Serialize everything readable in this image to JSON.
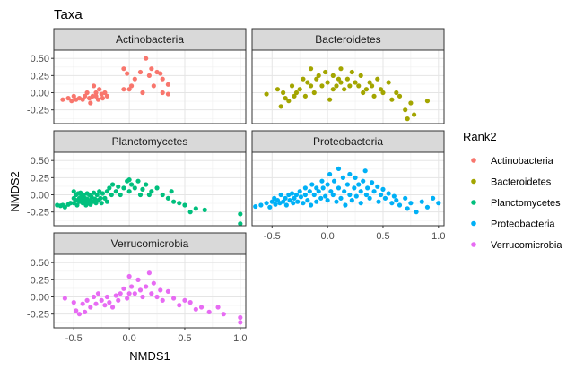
{
  "chart_data": {
    "type": "scatter",
    "title": "Taxa",
    "xlabel": "NMDS1",
    "ylabel": "NMDS2",
    "xlim": [
      -0.68,
      1.05
    ],
    "ylim": [
      -0.45,
      0.62
    ],
    "x_ticks": [
      -0.5,
      0.0,
      0.5,
      1.0
    ],
    "x_tick_labels": [
      "-0.5",
      "0.0",
      "0.5",
      "1.0"
    ],
    "y_ticks": [
      -0.25,
      0.0,
      0.25,
      0.5
    ],
    "y_tick_labels": [
      "-0.25",
      "0.00",
      "0.25",
      "0.50"
    ],
    "grid": true,
    "legend": {
      "title": "Rank2",
      "placement": "right",
      "entries": [
        "Actinobacteria",
        "Bacteroidetes",
        "Planctomycetes",
        "Proteobacteria",
        "Verrucomicrobia"
      ]
    },
    "colors": {
      "Actinobacteria": "#F8766D",
      "Bacteroidetes": "#A3A500",
      "Planctomycetes": "#00BF7D",
      "Proteobacteria": "#00B0F6",
      "Verrucomicrobia": "#E76BF3"
    },
    "panels": [
      {
        "name": "Actinobacteria",
        "points": [
          [
            -0.6,
            -0.1
          ],
          [
            -0.55,
            -0.08
          ],
          [
            -0.52,
            -0.12
          ],
          [
            -0.5,
            -0.05
          ],
          [
            -0.48,
            -0.1
          ],
          [
            -0.45,
            -0.08
          ],
          [
            -0.42,
            -0.1
          ],
          [
            -0.4,
            -0.05
          ],
          [
            -0.38,
            0.0
          ],
          [
            -0.36,
            -0.08
          ],
          [
            -0.35,
            -0.15
          ],
          [
            -0.33,
            -0.05
          ],
          [
            -0.32,
            0.1
          ],
          [
            -0.3,
            0.0
          ],
          [
            -0.3,
            -0.05
          ],
          [
            -0.28,
            -0.1
          ],
          [
            -0.27,
            0.05
          ],
          [
            -0.25,
            -0.02
          ],
          [
            -0.24,
            -0.08
          ],
          [
            -0.22,
            0.0
          ],
          [
            -0.2,
            -0.05
          ],
          [
            -0.05,
            0.05
          ],
          [
            0.0,
            0.05
          ],
          [
            0.02,
            0.1
          ],
          [
            -0.05,
            0.35
          ],
          [
            -0.02,
            0.28
          ],
          [
            0.05,
            0.2
          ],
          [
            0.1,
            0.3
          ],
          [
            0.12,
            0.0
          ],
          [
            0.15,
            0.5
          ],
          [
            0.18,
            0.25
          ],
          [
            0.2,
            0.35
          ],
          [
            0.22,
            0.1
          ],
          [
            0.25,
            0.3
          ],
          [
            0.28,
            0.28
          ],
          [
            0.3,
            0.2
          ],
          [
            0.3,
            0.0
          ],
          [
            0.35,
            0.12
          ],
          [
            0.35,
            -0.02
          ]
        ]
      },
      {
        "name": "Bacteroidetes",
        "points": [
          [
            -0.55,
            -0.02
          ],
          [
            -0.45,
            0.05
          ],
          [
            -0.42,
            -0.2
          ],
          [
            -0.4,
            0.0
          ],
          [
            -0.38,
            -0.08
          ],
          [
            -0.35,
            -0.12
          ],
          [
            -0.32,
            0.1
          ],
          [
            -0.3,
            -0.05
          ],
          [
            -0.28,
            0.0
          ],
          [
            -0.25,
            0.05
          ],
          [
            -0.22,
            0.2
          ],
          [
            -0.2,
            -0.05
          ],
          [
            -0.18,
            0.15
          ],
          [
            -0.15,
            0.35
          ],
          [
            -0.15,
            0.1
          ],
          [
            -0.12,
            0.0
          ],
          [
            -0.1,
            0.2
          ],
          [
            -0.08,
            0.25
          ],
          [
            -0.05,
            0.1
          ],
          [
            -0.02,
            0.3
          ],
          [
            0.0,
            0.15
          ],
          [
            0.02,
            -0.1
          ],
          [
            0.05,
            0.05
          ],
          [
            0.05,
            0.25
          ],
          [
            0.08,
            0.1
          ],
          [
            0.1,
            0.2
          ],
          [
            0.12,
            0.35
          ],
          [
            0.12,
            0.15
          ],
          [
            0.15,
            0.05
          ],
          [
            0.18,
            0.2
          ],
          [
            0.2,
            0.1
          ],
          [
            0.22,
            0.3
          ],
          [
            0.25,
            0.15
          ],
          [
            0.28,
            0.1
          ],
          [
            0.3,
            0.25
          ],
          [
            0.32,
            0.0
          ],
          [
            0.35,
            0.05
          ],
          [
            0.38,
            0.15
          ],
          [
            0.4,
            0.1
          ],
          [
            0.42,
            -0.05
          ],
          [
            0.45,
            0.2
          ],
          [
            0.48,
            0.05
          ],
          [
            0.5,
            0.0
          ],
          [
            0.55,
            0.15
          ],
          [
            0.58,
            -0.1
          ],
          [
            0.62,
            0.0
          ],
          [
            0.65,
            -0.05
          ],
          [
            0.7,
            -0.25
          ],
          [
            0.72,
            -0.38
          ],
          [
            0.75,
            -0.15
          ],
          [
            0.78,
            -0.32
          ],
          [
            0.9,
            -0.12
          ]
        ]
      },
      {
        "name": "Planctomycetes",
        "points": [
          [
            -0.65,
            -0.15
          ],
          [
            -0.62,
            -0.16
          ],
          [
            -0.6,
            -0.15
          ],
          [
            -0.58,
            -0.18
          ],
          [
            -0.55,
            -0.14
          ],
          [
            -0.53,
            -0.12
          ],
          [
            -0.5,
            0.05
          ],
          [
            -0.5,
            -0.05
          ],
          [
            -0.5,
            -0.12
          ],
          [
            -0.48,
            0.0
          ],
          [
            -0.48,
            -0.08
          ],
          [
            -0.47,
            -0.15
          ],
          [
            -0.46,
            0.02
          ],
          [
            -0.45,
            -0.05
          ],
          [
            -0.45,
            -0.1
          ],
          [
            -0.44,
            0.03
          ],
          [
            -0.43,
            -0.02
          ],
          [
            -0.42,
            -0.08
          ],
          [
            -0.42,
            -0.12
          ],
          [
            -0.41,
            0.0
          ],
          [
            -0.4,
            -0.05
          ],
          [
            -0.4,
            -0.1
          ],
          [
            -0.39,
            -0.15
          ],
          [
            -0.38,
            0.02
          ],
          [
            -0.38,
            -0.06
          ],
          [
            -0.37,
            -0.12
          ],
          [
            -0.36,
            0.0
          ],
          [
            -0.35,
            -0.08
          ],
          [
            -0.35,
            -0.14
          ],
          [
            -0.34,
            -0.03
          ],
          [
            -0.33,
            -0.1
          ],
          [
            -0.32,
            0.03
          ],
          [
            -0.31,
            -0.06
          ],
          [
            -0.3,
            -0.12
          ],
          [
            -0.29,
            0.0
          ],
          [
            -0.28,
            -0.08
          ],
          [
            -0.27,
            0.05
          ],
          [
            -0.26,
            -0.05
          ],
          [
            -0.25,
            -0.12
          ],
          [
            -0.24,
            0.02
          ],
          [
            -0.22,
            -0.05
          ],
          [
            -0.2,
            0.05
          ],
          [
            -0.2,
            -0.1
          ],
          [
            -0.18,
            0.1
          ],
          [
            -0.16,
            0.0
          ],
          [
            -0.15,
            0.15
          ],
          [
            -0.12,
            0.05
          ],
          [
            -0.1,
            0.12
          ],
          [
            -0.08,
            0.0
          ],
          [
            -0.05,
            0.1
          ],
          [
            -0.02,
            0.2
          ],
          [
            0.0,
            0.05
          ],
          [
            0.0,
            0.22
          ],
          [
            0.02,
            0.15
          ],
          [
            0.05,
            0.1
          ],
          [
            0.08,
            0.2
          ],
          [
            0.1,
            0.0
          ],
          [
            0.12,
            0.08
          ],
          [
            0.15,
            0.15
          ],
          [
            0.18,
            0.0
          ],
          [
            0.2,
            0.05
          ],
          [
            0.25,
            0.1
          ],
          [
            0.3,
            0.0
          ],
          [
            0.35,
            -0.05
          ],
          [
            0.38,
            0.05
          ],
          [
            0.4,
            -0.1
          ],
          [
            0.45,
            -0.12
          ],
          [
            0.5,
            -0.15
          ],
          [
            0.55,
            -0.25
          ],
          [
            0.6,
            -0.2
          ],
          [
            0.68,
            -0.22
          ],
          [
            1.0,
            -0.28
          ],
          [
            1.0,
            -0.42
          ]
        ]
      },
      {
        "name": "Proteobacteria",
        "points": [
          [
            -0.65,
            -0.17
          ],
          [
            -0.6,
            -0.15
          ],
          [
            -0.55,
            -0.12
          ],
          [
            -0.52,
            -0.18
          ],
          [
            -0.5,
            -0.1
          ],
          [
            -0.48,
            -0.05
          ],
          [
            -0.47,
            -0.14
          ],
          [
            -0.45,
            -0.08
          ],
          [
            -0.43,
            -0.12
          ],
          [
            -0.42,
            0.0
          ],
          [
            -0.4,
            -0.1
          ],
          [
            -0.38,
            -0.05
          ],
          [
            -0.37,
            -0.15
          ],
          [
            -0.35,
            0.0
          ],
          [
            -0.34,
            -0.08
          ],
          [
            -0.32,
            0.02
          ],
          [
            -0.31,
            -0.12
          ],
          [
            -0.3,
            -0.05
          ],
          [
            -0.28,
            0.0
          ],
          [
            -0.27,
            -0.1
          ],
          [
            -0.25,
            0.05
          ],
          [
            -0.24,
            -0.03
          ],
          [
            -0.22,
            -0.12
          ],
          [
            -0.2,
            0.1
          ],
          [
            -0.2,
            0.0
          ],
          [
            -0.18,
            -0.08
          ],
          [
            -0.16,
            0.05
          ],
          [
            -0.15,
            -0.15
          ],
          [
            -0.14,
            0.15
          ],
          [
            -0.12,
            0.0
          ],
          [
            -0.1,
            0.1
          ],
          [
            -0.1,
            -0.1
          ],
          [
            -0.08,
            0.05
          ],
          [
            -0.06,
            -0.05
          ],
          [
            -0.05,
            0.2
          ],
          [
            -0.04,
            0.1
          ],
          [
            -0.02,
            -0.02
          ],
          [
            0.0,
            0.15
          ],
          [
            0.0,
            -0.08
          ],
          [
            0.02,
            0.3
          ],
          [
            0.03,
            0.05
          ],
          [
            0.05,
            0.0
          ],
          [
            0.06,
            0.2
          ],
          [
            0.08,
            -0.1
          ],
          [
            0.1,
            0.38
          ],
          [
            0.1,
            0.1
          ],
          [
            0.12,
            -0.05
          ],
          [
            0.14,
            0.25
          ],
          [
            0.15,
            0.05
          ],
          [
            0.16,
            -0.15
          ],
          [
            0.18,
            0.15
          ],
          [
            0.2,
            0.3
          ],
          [
            0.2,
            0.0
          ],
          [
            0.22,
            -0.08
          ],
          [
            0.24,
            0.1
          ],
          [
            0.25,
            0.25
          ],
          [
            0.26,
            -0.02
          ],
          [
            0.28,
            0.15
          ],
          [
            0.3,
            0.05
          ],
          [
            0.3,
            -0.12
          ],
          [
            0.32,
            0.2
          ],
          [
            0.34,
            0.35
          ],
          [
            0.35,
            0.0
          ],
          [
            0.36,
            0.1
          ],
          [
            0.38,
            -0.05
          ],
          [
            0.4,
            0.18
          ],
          [
            0.42,
            0.05
          ],
          [
            0.45,
            0.12
          ],
          [
            0.46,
            -0.1
          ],
          [
            0.48,
            0.0
          ],
          [
            0.5,
            0.08
          ],
          [
            0.52,
            -0.05
          ],
          [
            0.55,
            0.02
          ],
          [
            0.58,
            -0.12
          ],
          [
            0.6,
            -0.02
          ],
          [
            0.62,
            -0.08
          ],
          [
            0.65,
            -0.15
          ],
          [
            0.7,
            -0.05
          ],
          [
            0.72,
            -0.2
          ],
          [
            0.75,
            -0.12
          ],
          [
            0.8,
            -0.25
          ],
          [
            0.85,
            -0.1
          ],
          [
            0.9,
            -0.18
          ],
          [
            0.95,
            -0.05
          ],
          [
            1.0,
            -0.12
          ]
        ]
      },
      {
        "name": "Verrucomicrobia",
        "points": [
          [
            -0.58,
            -0.02
          ],
          [
            -0.5,
            -0.08
          ],
          [
            -0.48,
            -0.2
          ],
          [
            -0.45,
            -0.25
          ],
          [
            -0.42,
            -0.1
          ],
          [
            -0.4,
            -0.22
          ],
          [
            -0.38,
            -0.05
          ],
          [
            -0.35,
            -0.15
          ],
          [
            -0.32,
            0.0
          ],
          [
            -0.3,
            -0.1
          ],
          [
            -0.28,
            0.05
          ],
          [
            -0.25,
            -0.05
          ],
          [
            -0.22,
            -0.12
          ],
          [
            -0.2,
            0.0
          ],
          [
            -0.18,
            -0.08
          ],
          [
            -0.15,
            -0.15
          ],
          [
            -0.12,
            0.02
          ],
          [
            -0.1,
            -0.05
          ],
          [
            -0.08,
            0.05
          ],
          [
            -0.05,
            0.12
          ],
          [
            -0.02,
            -0.02
          ],
          [
            0.0,
            0.05
          ],
          [
            0.0,
            0.3
          ],
          [
            0.02,
            0.15
          ],
          [
            0.05,
            0.05
          ],
          [
            0.08,
            0.25
          ],
          [
            0.1,
            0.1
          ],
          [
            0.12,
            0.0
          ],
          [
            0.15,
            0.15
          ],
          [
            0.18,
            0.35
          ],
          [
            0.2,
            0.05
          ],
          [
            0.22,
            0.2
          ],
          [
            0.25,
            0.0
          ],
          [
            0.28,
            0.1
          ],
          [
            0.3,
            -0.05
          ],
          [
            0.35,
            0.08
          ],
          [
            0.4,
            -0.02
          ],
          [
            0.45,
            -0.12
          ],
          [
            0.5,
            -0.05
          ],
          [
            0.55,
            -0.08
          ],
          [
            0.6,
            -0.18
          ],
          [
            0.65,
            -0.15
          ],
          [
            0.72,
            -0.22
          ],
          [
            0.8,
            -0.15
          ],
          [
            0.85,
            -0.25
          ],
          [
            1.0,
            -0.3
          ],
          [
            1.0,
            -0.37
          ]
        ]
      }
    ]
  }
}
